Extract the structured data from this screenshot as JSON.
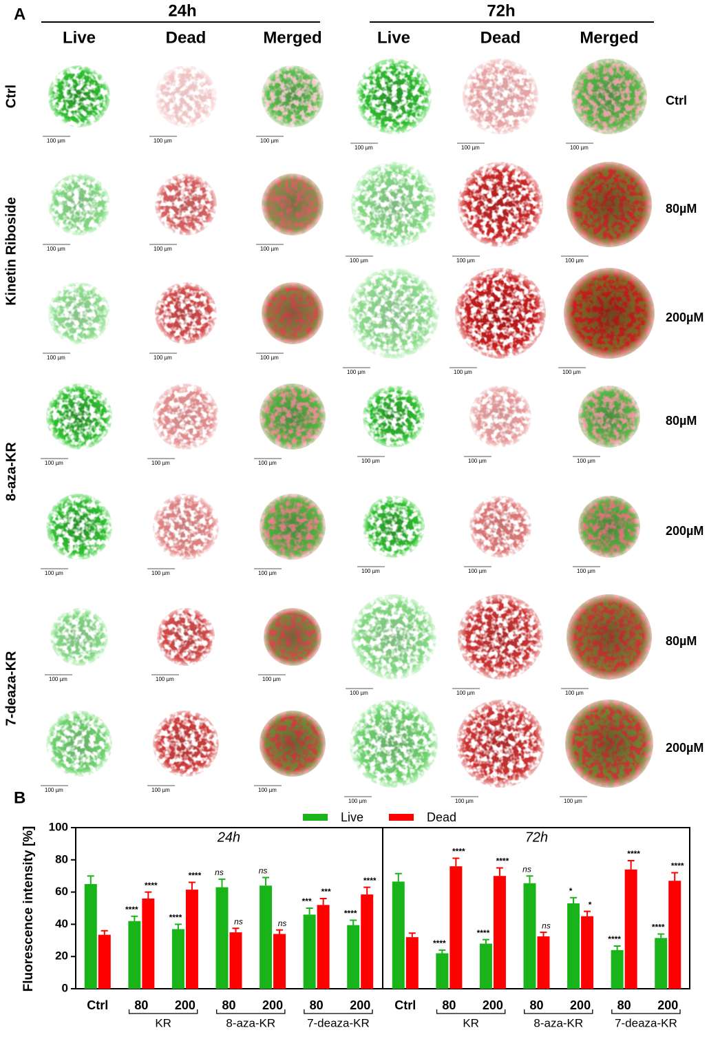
{
  "panel_a": {
    "label": "A",
    "time_points": [
      "24h",
      "72h"
    ],
    "channels": [
      "Live",
      "Dead",
      "Merged"
    ],
    "treatments": [
      "Ctrl",
      "Kinetin Riboside",
      "8-aza-KR",
      "7-deaza-KR"
    ],
    "row_labels": [
      "Ctrl",
      "80µM",
      "200µM",
      "80µM",
      "200µM",
      "80µM",
      "200µM"
    ],
    "scale_bar": "100 µm"
  },
  "chart_data": {
    "type": "bar",
    "label": "B",
    "ylabel": "Fluorescence intensity [%]",
    "ylim": [
      0,
      100
    ],
    "yticks": [
      0,
      20,
      40,
      60,
      80,
      100
    ],
    "legend": "top",
    "panels": [
      "24h",
      "72h"
    ],
    "categories": [
      "Ctrl",
      "80",
      "200",
      "80",
      "200",
      "80",
      "200"
    ],
    "category_groups": [
      null,
      "KR",
      "KR",
      "8-aza-KR",
      "8-aza-KR",
      "7-deaza-KR",
      "7-deaza-KR"
    ],
    "series": [
      {
        "name": "Live",
        "color": "#19b419",
        "values": [
          [
            65,
            42,
            37,
            63,
            64,
            46,
            39.5
          ],
          [
            66.5,
            22,
            28,
            65.5,
            53,
            24,
            31.5
          ]
        ],
        "errors": [
          [
            5,
            3,
            3,
            5,
            5,
            4,
            3
          ],
          [
            5,
            2,
            2.5,
            4.5,
            3.5,
            2.5,
            2.5
          ]
        ],
        "annotations": [
          [
            null,
            "****",
            "****",
            "ns",
            "ns",
            "***",
            "****"
          ],
          [
            null,
            "****",
            "****",
            "ns",
            "*",
            "****",
            "****"
          ]
        ]
      },
      {
        "name": "Dead",
        "color": "#ff0000",
        "values": [
          [
            33.5,
            56,
            61.5,
            35,
            34,
            52,
            58.5
          ],
          [
            32,
            76,
            70,
            32.5,
            45,
            74,
            67
          ]
        ],
        "errors": [
          [
            2.5,
            4,
            4.5,
            2.5,
            2.5,
            4,
            4.5
          ],
          [
            2.5,
            5,
            5,
            2.5,
            3,
            5.5,
            5
          ]
        ],
        "annotations": [
          [
            null,
            "****",
            "****",
            "ns",
            "ns",
            "***",
            "****"
          ],
          [
            null,
            "****",
            "****",
            "ns",
            "*",
            "****",
            "****"
          ]
        ]
      }
    ]
  }
}
